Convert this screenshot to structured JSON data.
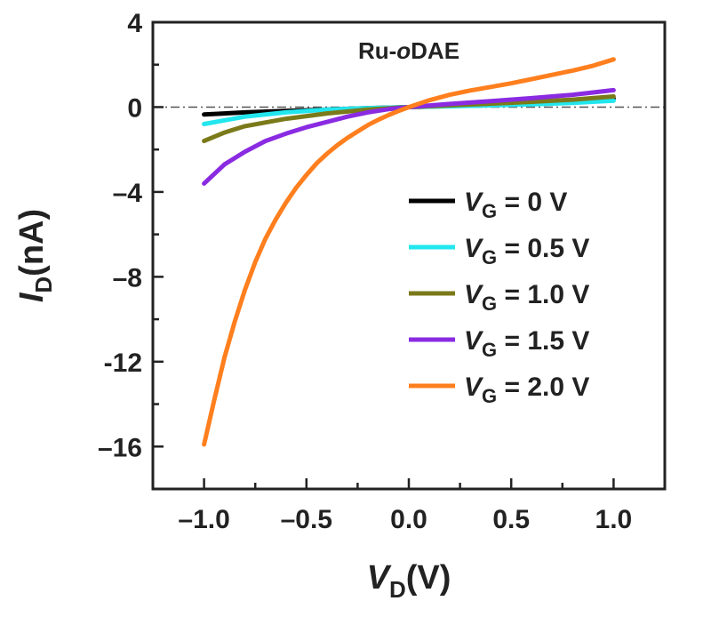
{
  "chart_data": {
    "type": "line",
    "annotation": "Ru-oDAE",
    "annotation_parts": {
      "prefix": "Ru-",
      "italic": "o",
      "suffix": "DAE"
    },
    "xlabel": {
      "symbol": "V",
      "subscript": "D",
      "unit": "(V)"
    },
    "ylabel": {
      "symbol": "I",
      "subscript": "D",
      "unit": "(nA)"
    },
    "xlim": [
      -1.25,
      1.25
    ],
    "ylim": [
      -18,
      4
    ],
    "xticks": [
      -1.0,
      -0.5,
      0.0,
      0.5,
      1.0
    ],
    "xtick_labels": [
      "–1.0",
      "–0.5",
      "0.0",
      "0.5",
      "1.0"
    ],
    "yticks": [
      4,
      0,
      -4,
      -8,
      -12,
      -16
    ],
    "ytick_labels": [
      "4",
      "0",
      "–4",
      "–8",
      "-12",
      "–16"
    ],
    "zero_line": true,
    "grid": false,
    "legend_position": "center-right",
    "series": [
      {
        "name": "VG = 0 V",
        "legend": {
          "symbol": "V",
          "subscript": "G",
          "rest": " = 0 V"
        },
        "color": "#000000",
        "x": [
          -1.0,
          -0.8,
          -0.6,
          -0.4,
          -0.2,
          0.0,
          0.2,
          0.4,
          0.6,
          0.8,
          1.0
        ],
        "y": [
          -0.35,
          -0.25,
          -0.18,
          -0.12,
          -0.05,
          0.0,
          0.05,
          0.12,
          0.2,
          0.3,
          0.4
        ]
      },
      {
        "name": "VG = 0.5 V",
        "legend": {
          "symbol": "V",
          "subscript": "G",
          "rest": " = 0.5 V"
        },
        "color": "#22e6ee",
        "x": [
          -1.0,
          -0.8,
          -0.6,
          -0.4,
          -0.2,
          0.0,
          0.2,
          0.4,
          0.6,
          0.8,
          1.0
        ],
        "y": [
          -0.8,
          -0.45,
          -0.25,
          -0.12,
          -0.05,
          0.0,
          0.04,
          0.08,
          0.13,
          0.2,
          0.3
        ]
      },
      {
        "name": "VG = 1.0 V",
        "legend": {
          "symbol": "V",
          "subscript": "G",
          "rest": " = 1.0 V"
        },
        "color": "#7b7a1a",
        "x": [
          -1.0,
          -0.9,
          -0.8,
          -0.6,
          -0.4,
          -0.2,
          0.0,
          0.2,
          0.4,
          0.6,
          0.8,
          1.0
        ],
        "y": [
          -1.6,
          -1.2,
          -0.9,
          -0.55,
          -0.3,
          -0.12,
          0.0,
          0.08,
          0.16,
          0.25,
          0.35,
          0.5
        ]
      },
      {
        "name": "VG = 1.5 V",
        "legend": {
          "symbol": "V",
          "subscript": "G",
          "rest": " = 1.5 V"
        },
        "color": "#8a2be2",
        "x": [
          -1.0,
          -0.9,
          -0.8,
          -0.7,
          -0.6,
          -0.5,
          -0.4,
          -0.3,
          -0.2,
          -0.1,
          0.0,
          0.2,
          0.4,
          0.6,
          0.8,
          1.0
        ],
        "y": [
          -3.6,
          -2.7,
          -2.1,
          -1.6,
          -1.25,
          -0.95,
          -0.7,
          -0.45,
          -0.25,
          -0.1,
          0.0,
          0.15,
          0.28,
          0.42,
          0.58,
          0.8
        ]
      },
      {
        "name": "VG = 2.0 V",
        "legend": {
          "symbol": "V",
          "subscript": "G",
          "rest": " = 2.0 V"
        },
        "color": "#ff7f1e",
        "x": [
          -1.0,
          -0.95,
          -0.9,
          -0.85,
          -0.8,
          -0.75,
          -0.7,
          -0.65,
          -0.6,
          -0.55,
          -0.5,
          -0.45,
          -0.4,
          -0.35,
          -0.3,
          -0.25,
          -0.2,
          -0.15,
          -0.1,
          -0.05,
          0.0,
          0.1,
          0.2,
          0.3,
          0.4,
          0.5,
          0.6,
          0.7,
          0.8,
          0.9,
          1.0
        ],
        "y": [
          -15.9,
          -13.8,
          -11.8,
          -10.1,
          -8.6,
          -7.3,
          -6.2,
          -5.3,
          -4.5,
          -3.8,
          -3.2,
          -2.65,
          -2.2,
          -1.8,
          -1.45,
          -1.15,
          -0.85,
          -0.6,
          -0.38,
          -0.18,
          0.0,
          0.32,
          0.58,
          0.78,
          0.95,
          1.12,
          1.32,
          1.52,
          1.72,
          1.95,
          2.25
        ]
      }
    ]
  }
}
